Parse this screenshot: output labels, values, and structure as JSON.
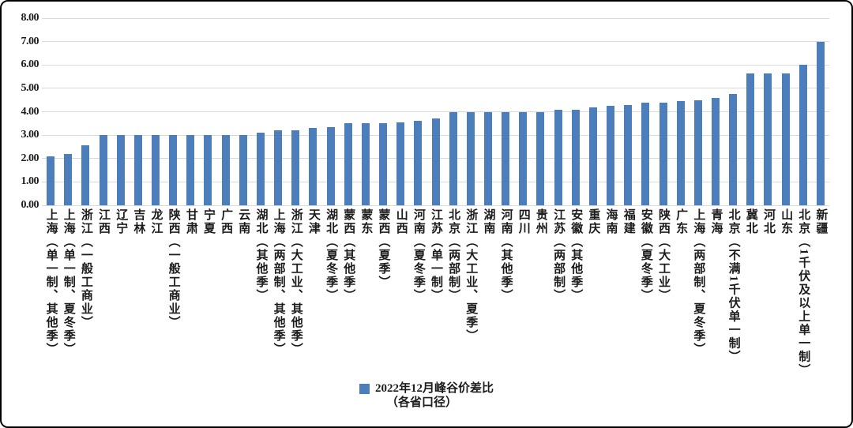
{
  "chart_data": {
    "type": "bar",
    "title": "",
    "legend": {
      "lines": [
        "2022年12月峰谷价差比",
        "（各省口径）"
      ],
      "position": "bottom-center"
    },
    "xlabel": "",
    "ylabel": "",
    "ylim": [
      0,
      8
    ],
    "ytick_step": 1,
    "ytick_labels": [
      "0.00",
      "1.00",
      "2.00",
      "3.00",
      "4.00",
      "5.00",
      "6.00",
      "7.00",
      "8.00"
    ],
    "grid": true,
    "categories": [
      "上海（单一制、其他季）",
      "上海（单一制、夏冬季）",
      "浙江（一般工商业）",
      "江西",
      "辽宁",
      "吉林",
      "龙江",
      "陕西（一般工商业）",
      "甘肃",
      "宁夏",
      "广西",
      "云南",
      "湖北（其他季）",
      "上海（两部制、其他季）",
      "浙江（大工业、其他季）",
      "天津",
      "湖北（夏冬季）",
      "蒙西（其他季）",
      "蒙东",
      "蒙西（夏季）",
      "山西",
      "河南（夏冬季）",
      "江苏（单一制）",
      "北京（两部制）",
      "浙江（大工业、夏季）",
      "湖南",
      "河南（其他季）",
      "四川",
      "贵州",
      "江苏（两部制）",
      "安徽（其他季）",
      "重庆",
      "海南",
      "福建",
      "安徽（夏冬季）",
      "陕西（大工业）",
      "广东",
      "上海（两部制、夏冬季）",
      "青海",
      "北京（不满1千伏单一制）",
      "冀北",
      "河北",
      "山东",
      "北京（1千伏及以上单一制）",
      "新疆"
    ],
    "values": [
      2.1,
      2.2,
      2.55,
      3.0,
      3.0,
      3.0,
      3.0,
      3.0,
      3.0,
      3.0,
      3.0,
      3.0,
      3.1,
      3.2,
      3.2,
      3.3,
      3.35,
      3.5,
      3.5,
      3.5,
      3.55,
      3.6,
      3.7,
      4.0,
      4.0,
      4.0,
      4.0,
      4.0,
      4.0,
      4.1,
      4.1,
      4.2,
      4.25,
      4.3,
      4.4,
      4.4,
      4.45,
      4.5,
      4.6,
      4.75,
      5.65,
      5.65,
      5.65,
      6.0,
      7.0
    ]
  },
  "colors": {
    "bar": "#4d7ebc",
    "gridline": "#d9d9d9",
    "text": "#1c1c1c",
    "frame_border": "#000000",
    "background": "#ffffff"
  }
}
